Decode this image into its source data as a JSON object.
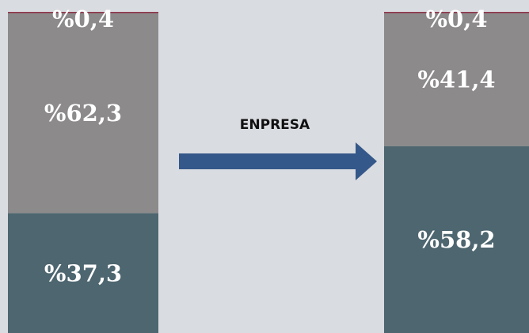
{
  "chart_data": {
    "type": "bar",
    "stacked": true,
    "orientation": "vertical",
    "categories": [
      "",
      ""
    ],
    "series": [
      {
        "values": [
          37.3,
          58.2
        ],
        "labels": [
          "%37,3",
          "%58,2"
        ],
        "color": "#4d6670"
      },
      {
        "values": [
          62.3,
          41.4
        ],
        "labels": [
          "%62,3",
          "%41,4"
        ],
        "color": "#8c8a8b"
      },
      {
        "values": [
          0.4,
          0.4
        ],
        "labels": [
          "%0,4",
          "%0,4"
        ],
        "color": "#8c3448"
      }
    ],
    "ylim": [
      0,
      100
    ],
    "annotation": {
      "type": "arrow",
      "text": "ENPRESA",
      "color": "#35588a"
    },
    "grid": false,
    "legend": "none"
  }
}
